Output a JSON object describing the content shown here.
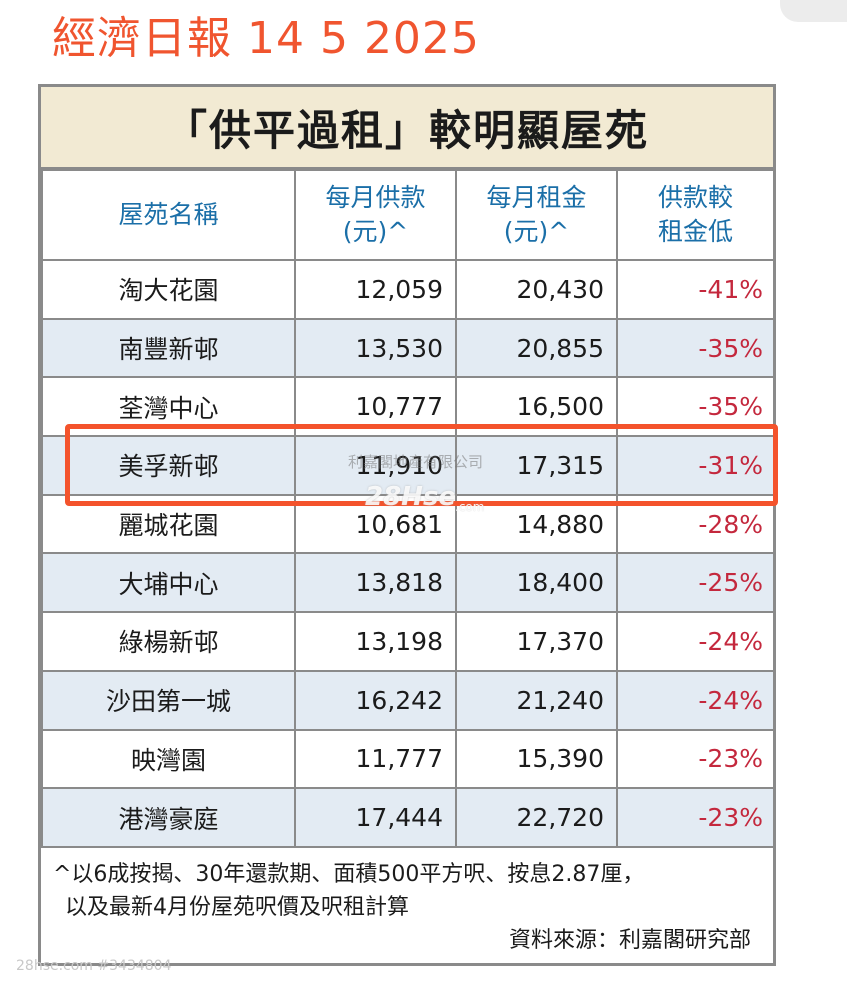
{
  "headline": "經濟日報 14 5 2025",
  "banner_title": "「供平過租」較明顯屋苑",
  "table": {
    "headers": [
      "屋苑名稱",
      "每月供款\n(元)^",
      "每月租金\n(元)^",
      "供款較\n租金低"
    ],
    "rows": [
      {
        "name": "淘大花園",
        "mortgage": "12,059",
        "rent": "20,430",
        "diff": "-41%"
      },
      {
        "name": "南豐新邨",
        "mortgage": "13,530",
        "rent": "20,855",
        "diff": "-35%"
      },
      {
        "name": "荃灣中心",
        "mortgage": "10,777",
        "rent": "16,500",
        "diff": "-35%"
      },
      {
        "name": "美孚新邨",
        "mortgage": "11,910",
        "rent": "17,315",
        "diff": "-31%"
      },
      {
        "name": "麗城花園",
        "mortgage": "10,681",
        "rent": "14,880",
        "diff": "-28%"
      },
      {
        "name": "大埔中心",
        "mortgage": "13,818",
        "rent": "18,400",
        "diff": "-25%"
      },
      {
        "name": "綠楊新邨",
        "mortgage": "13,198",
        "rent": "17,370",
        "diff": "-24%"
      },
      {
        "name": "沙田第一城",
        "mortgage": "16,242",
        "rent": "21,240",
        "diff": "-24%"
      },
      {
        "name": "映灣園",
        "mortgage": "11,777",
        "rent": "15,390",
        "diff": "-23%"
      },
      {
        "name": "港灣豪庭",
        "mortgage": "17,444",
        "rent": "22,720",
        "diff": "-23%"
      }
    ]
  },
  "footnote": {
    "line1": "^以6成按揭、30年還款期、面積500平方呎、按息2.87厘，",
    "line2": "以及最新4月份屋苑呎價及呎租計算",
    "source": "資料來源：利嘉閣研究部"
  },
  "watermarks": {
    "company": "利嘉閣地產有限公司",
    "logo": "28Hse",
    "logo_suffix": ".com",
    "bottom": "28hse.com #3434804"
  },
  "colors": {
    "headline": "#f0552f",
    "banner_bg": "#f2ead3",
    "header_text": "#1b6fa8",
    "row_alt_bg": "#e3ebf3",
    "negative_pct": "#c4283d",
    "highlight_border": "#f4532c"
  }
}
